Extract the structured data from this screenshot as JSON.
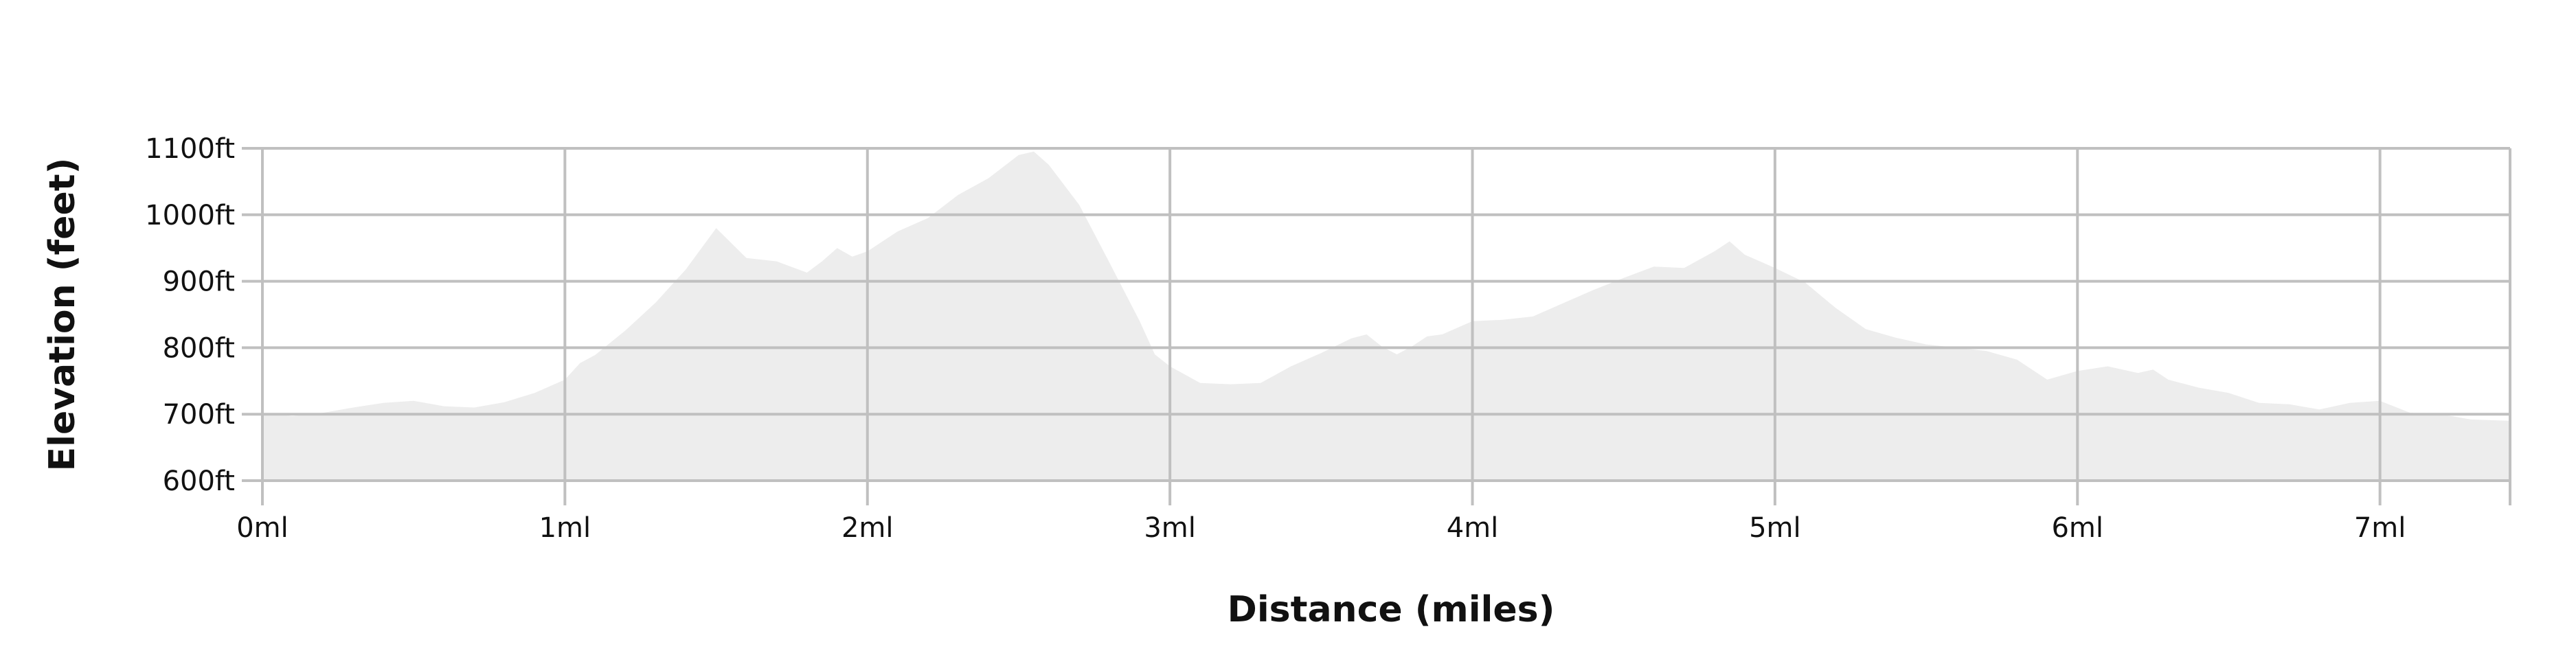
{
  "chart_data": {
    "type": "area",
    "title": "",
    "xlabel": "Distance (miles)",
    "ylabel": "Elevation (feet)",
    "xlim": [
      0,
      7.43
    ],
    "ylim": [
      600,
      1100
    ],
    "grid": true,
    "fill_color": "#ededed",
    "grid_color": "#c0c0c0",
    "x_ticks": [
      0,
      1,
      2,
      3,
      4,
      5,
      6,
      7
    ],
    "x_tick_labels": [
      "0ml",
      "1ml",
      "2ml",
      "3ml",
      "4ml",
      "5ml",
      "6ml",
      "7ml"
    ],
    "y_ticks": [
      600,
      700,
      800,
      900,
      1000,
      1100
    ],
    "y_tick_labels": [
      "600ft",
      "700ft",
      "800ft",
      "900ft",
      "1000ft",
      "1100ft"
    ],
    "x": [
      0,
      0.1,
      0.2,
      0.3,
      0.4,
      0.5,
      0.6,
      0.7,
      0.8,
      0.9,
      1.0,
      1.05,
      1.1,
      1.2,
      1.3,
      1.4,
      1.5,
      1.6,
      1.7,
      1.8,
      1.85,
      1.9,
      1.95,
      2.0,
      2.1,
      2.2,
      2.3,
      2.4,
      2.5,
      2.55,
      2.6,
      2.7,
      2.8,
      2.9,
      2.95,
      3.0,
      3.1,
      3.2,
      3.3,
      3.4,
      3.5,
      3.6,
      3.65,
      3.7,
      3.75,
      3.8,
      3.85,
      3.9,
      4.0,
      4.1,
      4.2,
      4.3,
      4.4,
      4.5,
      4.6,
      4.7,
      4.8,
      4.85,
      4.9,
      5.0,
      5.1,
      5.2,
      5.3,
      5.4,
      5.5,
      5.6,
      5.7,
      5.8,
      5.9,
      6.0,
      6.1,
      6.2,
      6.25,
      6.3,
      6.4,
      6.5,
      6.6,
      6.7,
      6.8,
      6.9,
      7.0,
      7.1,
      7.2,
      7.3,
      7.43
    ],
    "y": [
      702,
      697,
      702,
      710,
      717,
      720,
      712,
      710,
      718,
      732,
      752,
      777,
      789,
      826,
      868,
      918,
      980,
      935,
      930,
      913,
      930,
      950,
      937,
      945,
      975,
      995,
      1030,
      1055,
      1090,
      1095,
      1075,
      1015,
      928,
      840,
      790,
      772,
      747,
      745,
      747,
      772,
      792,
      814,
      820,
      802,
      790,
      802,
      817,
      820,
      840,
      842,
      847,
      867,
      887,
      905,
      922,
      920,
      945,
      960,
      940,
      920,
      898,
      860,
      828,
      815,
      805,
      800,
      795,
      782,
      752,
      765,
      772,
      762,
      767,
      752,
      740,
      732,
      717,
      715,
      707,
      717,
      720,
      702,
      700,
      692,
      690
    ]
  }
}
